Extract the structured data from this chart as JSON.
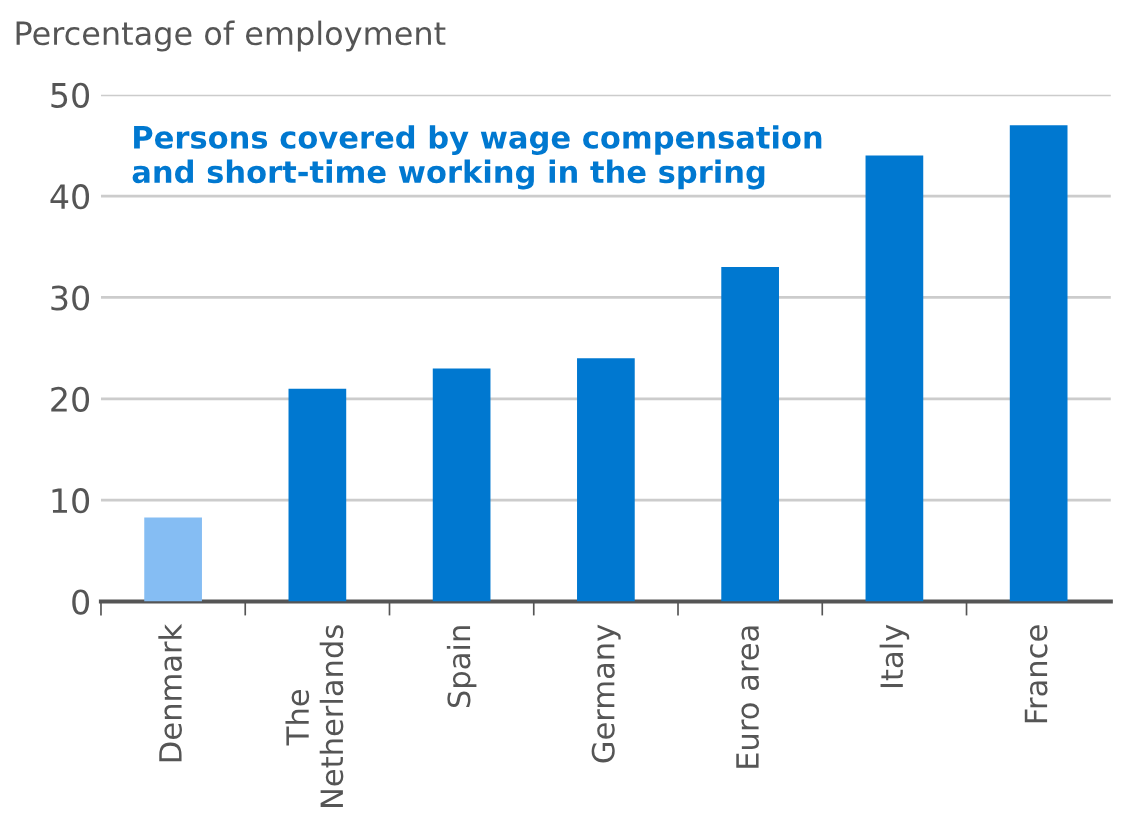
{
  "chart_data": {
    "type": "bar",
    "ylabel": "Percentage of employment",
    "annotations": [
      "Persons covered by wage compensation\nand short-time working in the spring"
    ],
    "categories": [
      "Denmark",
      "The\nNetherlands",
      "Spain",
      "Germany",
      "Euro area",
      "Italy",
      "France"
    ],
    "values": [
      8.3,
      21,
      23,
      24,
      33,
      44,
      47
    ],
    "colors": [
      "#85bdf3",
      "#0078d0",
      "#0078d0",
      "#0078d0",
      "#0078d0",
      "#0078d0",
      "#0078d0"
    ],
    "ylim": [
      0,
      50
    ],
    "yticks": [
      0,
      10,
      20,
      30,
      40,
      50
    ],
    "grid": "y",
    "legend": false
  }
}
